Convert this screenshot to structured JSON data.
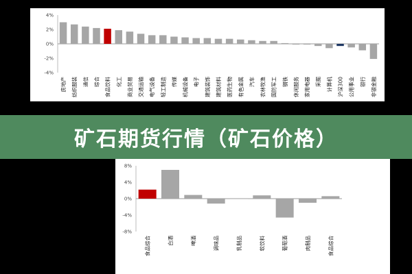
{
  "banner": {
    "title": "矿石期货行情（矿石价格）"
  },
  "colors": {
    "highlight": "#c00000",
    "benchmark": "#1f3864",
    "default": "#a6a6a6",
    "banner": "#4f8a5e"
  },
  "chart_data": [
    {
      "type": "bar",
      "ylim": [
        -4,
        4
      ],
      "yticks": [
        4,
        2,
        0,
        -2,
        -4
      ],
      "ytick_labels": [
        "4%",
        "2%",
        "0%",
        "-2%",
        "-4%"
      ],
      "grid": false,
      "categories": [
        "房地产",
        "纺织服装",
        "通信",
        "综合",
        "食品饮料",
        "化工",
        "商业贸易",
        "交通运输",
        "电气设备",
        "轻工制造",
        "传媒",
        "机械设备",
        "电子",
        "建筑装饰",
        "建筑材料",
        "医药生物",
        "有色金属",
        "汽车",
        "农林牧渔",
        "国防军工",
        "钢铁",
        "休闲服务",
        "家用电器",
        "采掘",
        "计算机",
        "沪深300",
        "公用事业",
        "银行",
        "非银金融"
      ],
      "values": [
        3.0,
        2.7,
        2.4,
        2.2,
        2.1,
        1.9,
        1.7,
        1.4,
        1.2,
        1.2,
        1.0,
        0.9,
        0.8,
        0.8,
        0.7,
        0.7,
        0.6,
        0.5,
        0.4,
        0.4,
        0.1,
        -0.1,
        -0.1,
        -0.3,
        -0.6,
        -0.3,
        -0.5,
        -0.9,
        -2.1
      ],
      "highlight_index": 4,
      "benchmark_index": 25
    },
    {
      "type": "bar",
      "ylim": [
        -8,
        8
      ],
      "yticks": [
        8,
        4,
        0,
        -4,
        -8
      ],
      "ytick_labels": [
        "8%",
        "4%",
        "0%",
        "-4%",
        "-8%"
      ],
      "grid": false,
      "categories": [
        "食品综合",
        "白酒",
        "啤酒",
        "调味品",
        "乳制品",
        "软饮料",
        "葡萄酒",
        "肉制品",
        "食品综合"
      ],
      "display_labels": [
        "食品综合",
        "白酒",
        "啤酒",
        "调味品",
        "乳制品",
        "软饮料",
        "葡萄酒",
        "肉制品",
        "食品综合"
      ],
      "values": [
        2.2,
        7.0,
        0.9,
        -1.2,
        0.1,
        0.8,
        -4.6,
        -1.0,
        0.6
      ],
      "highlight_index": 0
    }
  ]
}
